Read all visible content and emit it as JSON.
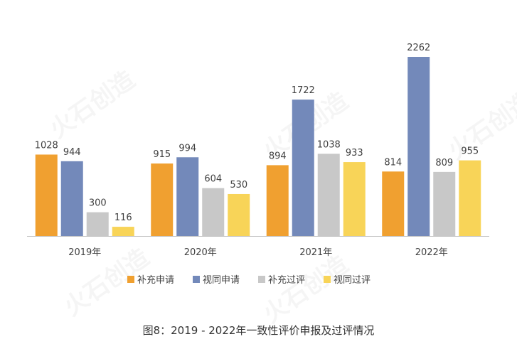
{
  "chart_data": {
    "type": "bar",
    "categories": [
      "2019年",
      "2020年",
      "2021年",
      "2022年"
    ],
    "series": [
      {
        "name": "补充申请",
        "color": "#F0A030",
        "values": [
          1028,
          915,
          894,
          814
        ]
      },
      {
        "name": "视同申请",
        "color": "#7389BA",
        "values": [
          944,
          994,
          1722,
          2262
        ]
      },
      {
        "name": "补充过评",
        "color": "#C8C8C8",
        "values": [
          300,
          604,
          1038,
          809
        ]
      },
      {
        "name": "视同过评",
        "color": "#F8D458",
        "values": [
          116,
          530,
          933,
          955
        ]
      }
    ],
    "ylim": [
      0,
      2500
    ],
    "grid": false,
    "legend": "bottom",
    "data_labels": true
  },
  "caption": "图8：2019 - 2022年一致性评价申报及过评情况",
  "watermark": "火石创造"
}
